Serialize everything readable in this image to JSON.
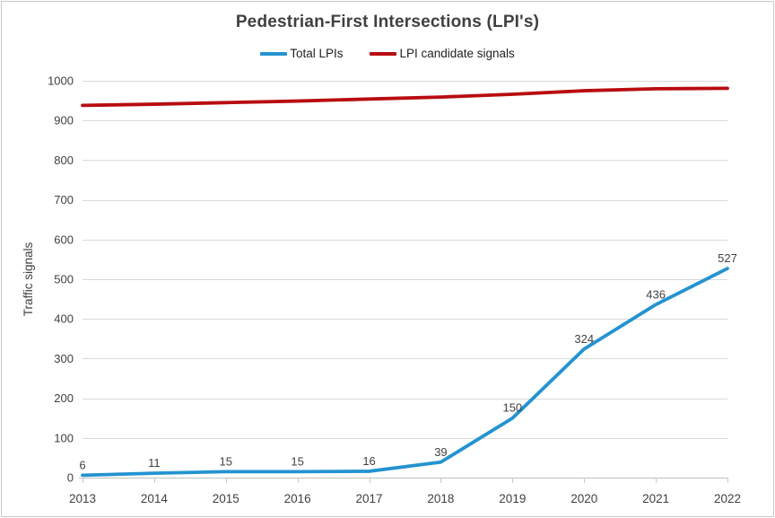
{
  "title": "Pedestrian-First Intersections (LPI's)",
  "chart_data": {
    "type": "line",
    "title": "Pedestrian-First Intersections (LPI's)",
    "x": [
      2013,
      2014,
      2015,
      2016,
      2017,
      2018,
      2019,
      2020,
      2021,
      2022
    ],
    "series": [
      {
        "name": "Total LPIs",
        "color": "#2493D1",
        "values": [
          6,
          11,
          15,
          15,
          16,
          39,
          150,
          324,
          436,
          527
        ],
        "show_data_labels": true
      },
      {
        "name": "LPI candidate signals",
        "color": "#B80C10",
        "values": [
          938,
          941,
          945,
          949,
          954,
          959,
          966,
          975,
          980,
          981
        ],
        "show_data_labels": false
      }
    ],
    "xlabel": "",
    "ylabel": "Traffic signals",
    "ylim": [
      0,
      1000
    ],
    "ytick_step": 100,
    "grid": true,
    "legend_position": "top"
  },
  "styles": {
    "title_color": "#404040",
    "grid_color": "#D9D9D9",
    "axis_line_color": "#BFBFBF",
    "tick_mark_color": "#C9C9C9",
    "tick_label_color": "#404040",
    "data_label_color": "#404040",
    "axis_title_color": "#404040",
    "frame_border_color": "#C9C9C9"
  }
}
